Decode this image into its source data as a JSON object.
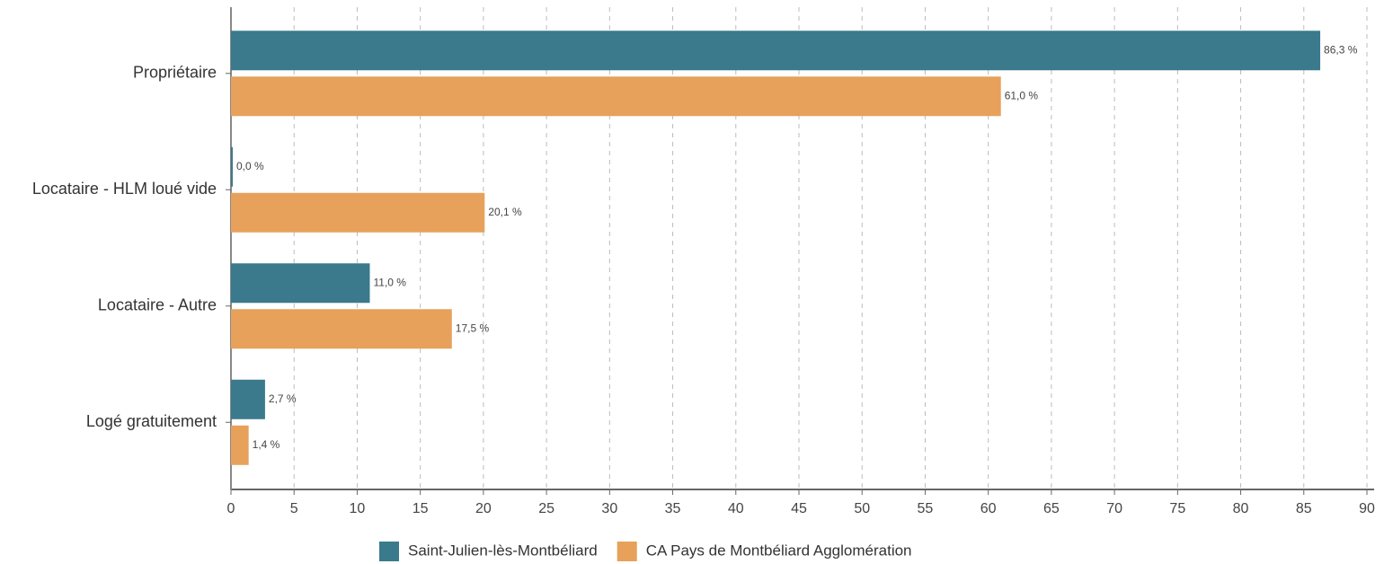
{
  "chart_data": {
    "type": "hbar",
    "categories": [
      "Propriétaire",
      "Locataire - HLM loué vide",
      "Locataire - Autre",
      "Logé gratuitement"
    ],
    "series": [
      {
        "name": "Saint-Julien-lès-Montbéliard",
        "color": "#3a7a8c",
        "values": [
          86.3,
          0.0,
          11.0,
          2.7
        ],
        "value_labels": [
          "86,3 %",
          "0,0 %",
          "11,0 %",
          "2,7 %"
        ]
      },
      {
        "name": "CA Pays de Montbéliard Agglomération",
        "color": "#e7a15b",
        "values": [
          61.0,
          20.1,
          17.5,
          1.4
        ],
        "value_labels": [
          "61,0 %",
          "20,1 %",
          "17,5 %",
          "1,4 %"
        ]
      }
    ],
    "xlim": [
      0,
      90
    ],
    "xticks": [
      0,
      5,
      10,
      15,
      20,
      25,
      30,
      35,
      40,
      45,
      50,
      55,
      60,
      65,
      70,
      75,
      80,
      85,
      90
    ],
    "grid": true,
    "legend": "bottom"
  }
}
